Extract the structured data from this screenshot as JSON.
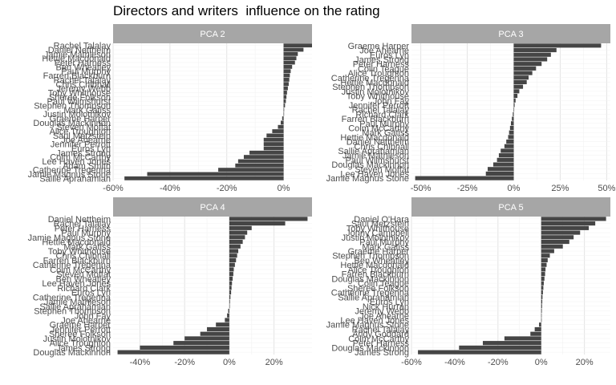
{
  "title": "Directors and writers  influence on the rating",
  "colors": {
    "bar": "#454545",
    "strip": "#a6a6a6",
    "grid_major": "#e3e3e3",
    "grid_minor": "#f2f2f2",
    "text": "#4d4d4d"
  },
  "chart_data": [
    {
      "type": "bar",
      "orientation": "horizontal",
      "panel": "PCA 2",
      "xlim": [
        -0.6,
        0.1
      ],
      "xticks": [
        -0.6,
        -0.4,
        -0.2,
        0
      ],
      "xtick_labels": [
        "-60%",
        "-40%",
        "-20%",
        "0%"
      ],
      "labels": [
        "Rachel Talalay",
        "Daniel Nettheim",
        "Jamie Mathieson",
        "Hettie Macdonald",
        "Peter Harness",
        "Ben Wheatley",
        "Paul Murphy",
        "Farren Blackburn",
        "Rachel Talalay",
        "Chris Chibnall",
        "Jeremy Webb",
        "Toby Whithouse",
        "Sheree Folkson",
        "Paul Wilmshurst",
        "Stephen Thompson",
        "Mark Gatiss",
        "Justin Molotnikov",
        "Graeme Harper",
        "Douglas Mackinnon",
        "Steven Moffat",
        "Alice Troughton",
        "Saul Metzstein",
        "Joe Ahearne",
        "Jennifer Perrott",
        "Euros Lyn",
        "James Strong",
        "Colm McCarthy",
        "Lee Haven Jones",
        "Adam Smith",
        "Catherine Tregenna",
        "Jamie Magnus Stone",
        "Sallie Aprahamian"
      ],
      "values": [
        0.1,
        0.07,
        0.05,
        0.045,
        0.04,
        0.03,
        0.025,
        0.022,
        0.02,
        0.018,
        0.015,
        0.012,
        0.01,
        0.008,
        0.005,
        0.002,
        0.0,
        -0.005,
        -0.01,
        -0.02,
        -0.04,
        -0.06,
        -0.07,
        -0.07,
        -0.07,
        -0.12,
        -0.14,
        -0.16,
        -0.17,
        -0.23,
        -0.48,
        -0.56
      ]
    },
    {
      "type": "bar",
      "orientation": "horizontal",
      "panel": "PCA 3",
      "xlim": [
        -0.55,
        0.52
      ],
      "xticks": [
        -0.5,
        -0.25,
        0,
        0.25,
        0.5
      ],
      "xtick_labels": [
        "-50%",
        "-25%",
        "0%",
        "25%",
        "50%"
      ],
      "labels": [
        "Graeme Harper",
        "Joe Ahearne",
        "Euros Lyn",
        "James Strong",
        "Peter Harness",
        "Colin Teague",
        "Alice Troughton",
        "Catherine Tregenna",
        "Hettie Macdonald",
        "Stephen Thompson",
        "Justin Molotnikov",
        "Toby Whithouse",
        "John Fay",
        "Jennifer Perrott",
        "Rachel Talalay",
        "Richard Clark",
        "Farren Blackburn",
        "Paul Murphy",
        "Colm McCarthy",
        "Mark Gatiss",
        "Hettie Macdonald",
        "Daniel Nettheim",
        "Chris Chibnall",
        "Sallie Aprahamian",
        "Jamie Mathieson",
        "Paul Wilmshurst",
        "Douglas Mackinnon",
        "Steven Moffat",
        "Lee Haven Jones",
        "Jamie Magnus Stone"
      ],
      "values": [
        0.47,
        0.23,
        0.2,
        0.18,
        0.15,
        0.12,
        0.1,
        0.08,
        0.07,
        0.05,
        0.03,
        0.02,
        0.01,
        0.005,
        0.0,
        -0.005,
        -0.01,
        -0.015,
        -0.02,
        -0.025,
        -0.03,
        -0.04,
        -0.05,
        -0.07,
        -0.08,
        -0.09,
        -0.11,
        -0.14,
        -0.15,
        -0.53
      ]
    },
    {
      "type": "bar",
      "orientation": "horizontal",
      "panel": "PCA 4",
      "xlim": [
        -0.52,
        0.37
      ],
      "xticks": [
        -0.4,
        -0.2,
        0,
        0.2
      ],
      "xtick_labels": [
        "-40%",
        "-20%",
        "0%",
        "20%"
      ],
      "labels": [
        "Daniel Nettheim",
        "Rachel Talalay",
        "Peter Harness",
        "Paul Murphy",
        "Jamie Magnus Stone",
        "Hettie Macdonald",
        "Mark Gatiss",
        "Toby Whithouse",
        "Chris Chibnall",
        "Farren Blackburn",
        "Catherine Tregenna",
        "Colm McCarthy",
        "Steven Moffat",
        "Ben Wheatley",
        "Lee Haven Jones",
        "Richard Clark",
        "Euros Lyn",
        "Catherine Tregenna",
        "Jamie Mathieson",
        "Sallie Aprahamian",
        "Stephen Thompson",
        "John Fay",
        "Joe Ahearne",
        "Graeme Harper",
        "Jennifer Perrott",
        "Sheree Folkson",
        "Justin Molotnikov",
        "Alice Troughton",
        "James Strong",
        "Douglas Mackinnon"
      ],
      "values": [
        0.35,
        0.25,
        0.1,
        0.08,
        0.07,
        0.06,
        0.05,
        0.04,
        0.035,
        0.03,
        0.025,
        0.02,
        0.018,
        0.015,
        0.012,
        0.01,
        0.008,
        0.005,
        0.003,
        0.0,
        -0.005,
        -0.01,
        -0.02,
        -0.06,
        -0.1,
        -0.13,
        -0.2,
        -0.25,
        -0.4,
        -0.5
      ]
    },
    {
      "type": "bar",
      "orientation": "horizontal",
      "panel": "PCA 5",
      "xlim": [
        -0.6,
        0.32
      ],
      "xticks": [
        -0.6,
        -0.4,
        -0.2,
        0,
        0.2
      ],
      "xtick_labels": [
        "-60%",
        "-40%",
        "-20%",
        "0%",
        "20%"
      ],
      "labels": [
        "Daniel O'Hara",
        "Saul Metzstein",
        "Toby Whithouse",
        "Jonny Campbell",
        "Justin Molotnikov",
        "Paul Murphy",
        "Mark Gatiss",
        "Graeme Harper",
        "Stephen Thompson",
        "Ben Wheatley",
        "Hettie Macdonald",
        "Alice Troughton",
        "Farren Blackburn",
        "Douglas Mackinnon",
        "Colin Teague",
        "Sheree Folkson",
        "Catherine Tregenna",
        "Sallie Aprahamian",
        "Euros Lyn",
        "Nick Hurran",
        "Jeremy Webb",
        "Joe Ahearne",
        "Lee Haven Jones",
        "Jamie Magnus Stone",
        "Rachel Talalay",
        "Andy Goddard",
        "Colm McCarthy",
        "Peter Harness",
        "Douglas Mackinnon",
        "James Strong"
      ],
      "values": [
        0.3,
        0.25,
        0.22,
        0.18,
        0.15,
        0.13,
        0.1,
        0.06,
        0.04,
        0.03,
        0.025,
        0.02,
        0.018,
        0.015,
        0.012,
        0.01,
        0.008,
        0.006,
        0.005,
        0.004,
        0.003,
        0.002,
        0.0,
        -0.01,
        -0.03,
        -0.05,
        -0.17,
        -0.27,
        -0.38,
        -0.57
      ]
    }
  ]
}
